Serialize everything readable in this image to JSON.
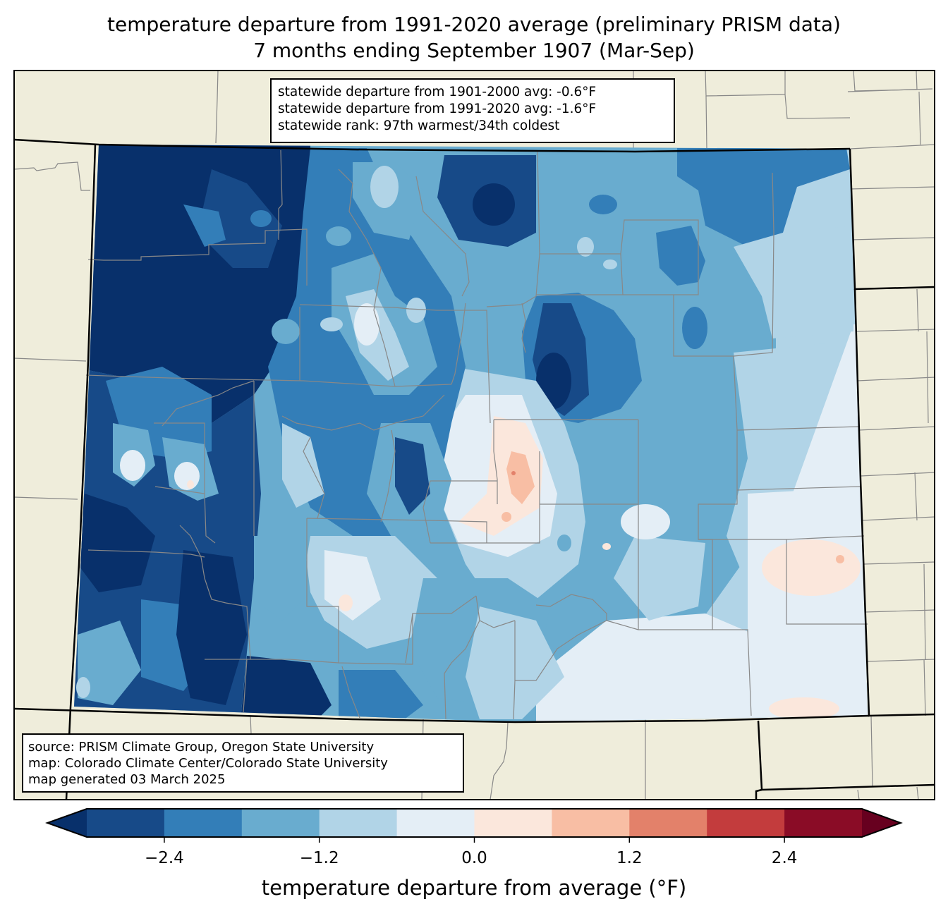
{
  "title": {
    "line1": "temperature departure from 1991-2020 average (preliminary PRISM data)",
    "line2": "7 months ending September 1907 (Mar-Sep)"
  },
  "stats_box": {
    "line1": "statewide departure from 1901-2000 avg: -0.6°F",
    "line2": "statewide departure from 1991-2020 avg: -1.6°F",
    "line3": "statewide rank: 97th warmest/34th coldest"
  },
  "source_box": {
    "line1": "source: PRISM Climate Group, Oregon State University",
    "line2": "map: Colorado Climate Center/Colorado State University",
    "line3": "map generated 03 March 2025"
  },
  "colorbar": {
    "label": "temperature departure from average (°F)",
    "range": [
      -3.0,
      3.0
    ],
    "ticks": [
      {
        "value": -2.4,
        "label": "−2.4"
      },
      {
        "value": -1.2,
        "label": "−1.2"
      },
      {
        "value": 0.0,
        "label": "0.0"
      },
      {
        "value": 1.2,
        "label": "1.2"
      },
      {
        "value": 2.4,
        "label": "2.4"
      }
    ],
    "under_color": "#08306b",
    "over_color": "#67001f",
    "bins": [
      {
        "min": -3.0,
        "max": -2.4,
        "color": "#174a88"
      },
      {
        "min": -2.4,
        "max": -1.8,
        "color": "#337eb8"
      },
      {
        "min": -1.8,
        "max": -1.2,
        "color": "#69accf"
      },
      {
        "min": -1.2,
        "max": -0.6,
        "color": "#b1d4e7"
      },
      {
        "min": -0.6,
        "max": 0.0,
        "color": "#e4eef6"
      },
      {
        "min": 0.0,
        "max": 0.6,
        "color": "#fbe7dc"
      },
      {
        "min": 0.6,
        "max": 1.2,
        "color": "#f8bea4"
      },
      {
        "min": 1.2,
        "max": 1.8,
        "color": "#e3816a"
      },
      {
        "min": 1.8,
        "max": 2.4,
        "color": "#c33c3d"
      },
      {
        "min": 2.4,
        "max": 3.0,
        "color": "#8a0c26"
      }
    ]
  },
  "map_colors": {
    "land": "#efeddb",
    "county_line": "#888888",
    "state_line": "#000000"
  }
}
